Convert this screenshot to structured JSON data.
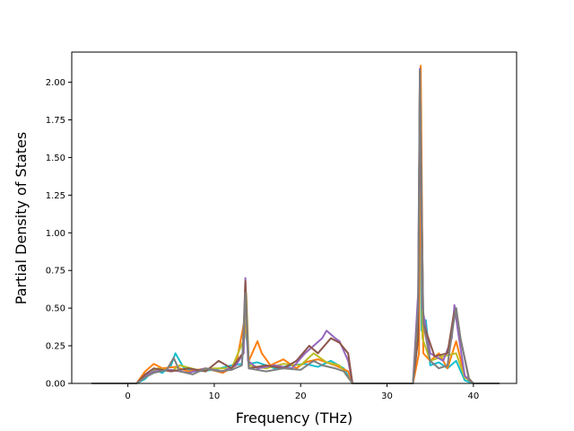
{
  "chart_data": {
    "type": "line",
    "title": "",
    "xlabel": "Frequency (THz)",
    "ylabel": "Partial Density of States",
    "xlim": [
      -6.5,
      45
    ],
    "ylim": [
      0,
      2.2
    ],
    "grid": false,
    "legend": "none",
    "x_ticks": [
      0,
      10,
      20,
      30,
      40
    ],
    "x_tick_labels": [
      "0",
      "10",
      "20",
      "30",
      "40"
    ],
    "y_ticks": [
      0,
      0.25,
      0.5,
      0.75,
      1.0,
      1.25,
      1.5,
      1.75,
      2.0
    ],
    "y_tick_labels": [
      "0.00",
      "0.25",
      "0.50",
      "0.75",
      "1.00",
      "1.25",
      "1.50",
      "1.75",
      "2.00"
    ],
    "series": [
      {
        "color": "#17becf",
        "x": [
          -4.2,
          1.0,
          2.0,
          3.0,
          4.0,
          5.0,
          5.5,
          6.5,
          8.0,
          10.0,
          12.0,
          13.2,
          13.6,
          14.0,
          15.0,
          17.0,
          19.0,
          20.5,
          22.0,
          23.5,
          25.0,
          26.0,
          33.0,
          33.6,
          33.8,
          34.0,
          34.5,
          35.0,
          36.0,
          37.0,
          38.0,
          39.0,
          40.0,
          43.0
        ],
        "y": [
          0,
          0,
          0.03,
          0.09,
          0.07,
          0.12,
          0.2,
          0.1,
          0.08,
          0.09,
          0.12,
          0.13,
          0.4,
          0.13,
          0.14,
          0.1,
          0.12,
          0.13,
          0.11,
          0.15,
          0.1,
          0.0,
          0.0,
          0.3,
          2.05,
          0.35,
          0.42,
          0.12,
          0.14,
          0.1,
          0.15,
          0.02,
          0,
          0
        ]
      },
      {
        "color": "#ff7f0e",
        "x": [
          -4.2,
          1.0,
          2.0,
          3.0,
          4.0,
          5.5,
          7.0,
          9.0,
          11.0,
          12.5,
          13.6,
          14.0,
          15.0,
          15.5,
          16.5,
          18.0,
          19.5,
          20.5,
          22.0,
          24.0,
          25.5,
          26.0,
          33.0,
          33.7,
          33.9,
          34.2,
          35.0,
          36.0,
          37.0,
          38.0,
          39.0,
          40.0,
          43.0
        ],
        "y": [
          0,
          0,
          0.08,
          0.13,
          0.1,
          0.11,
          0.08,
          0.1,
          0.07,
          0.12,
          0.45,
          0.15,
          0.28,
          0.2,
          0.12,
          0.16,
          0.1,
          0.14,
          0.16,
          0.12,
          0.08,
          0.0,
          0.0,
          0.2,
          2.11,
          0.2,
          0.15,
          0.2,
          0.1,
          0.28,
          0.05,
          0,
          0
        ]
      },
      {
        "color": "#bcbd22",
        "x": [
          -4.2,
          1.0,
          2.0,
          3.5,
          5.0,
          6.0,
          8.0,
          10.0,
          12.0,
          13.5,
          13.7,
          14.0,
          16.0,
          18.0,
          20.0,
          21.5,
          23.0,
          24.5,
          26.0,
          33.0,
          33.6,
          33.8,
          34.1,
          35.0,
          36.5,
          38.0,
          39.0,
          40.0,
          43.0
        ],
        "y": [
          0,
          0,
          0.05,
          0.1,
          0.08,
          0.12,
          0.09,
          0.1,
          0.1,
          0.3,
          0.6,
          0.12,
          0.1,
          0.13,
          0.12,
          0.2,
          0.14,
          0.12,
          0.0,
          0.0,
          0.4,
          2.08,
          0.3,
          0.15,
          0.18,
          0.2,
          0.04,
          0,
          0
        ]
      },
      {
        "color": "#9467bd",
        "x": [
          -4.2,
          1.0,
          2.0,
          3.0,
          5.0,
          7.0,
          9.0,
          11.0,
          12.5,
          13.4,
          13.6,
          13.9,
          15.0,
          17.0,
          19.0,
          20.5,
          21.5,
          22.5,
          23.0,
          24.0,
          24.5,
          25.5,
          26.0,
          33.0,
          33.6,
          33.8,
          34.1,
          35.0,
          36.5,
          37.5,
          37.8,
          38.2,
          39.0,
          40.0,
          43.0
        ],
        "y": [
          0,
          0,
          0.05,
          0.08,
          0.09,
          0.07,
          0.1,
          0.08,
          0.12,
          0.2,
          0.7,
          0.15,
          0.1,
          0.12,
          0.1,
          0.2,
          0.25,
          0.3,
          0.35,
          0.3,
          0.28,
          0.15,
          0.0,
          0.0,
          0.6,
          2.09,
          0.5,
          0.2,
          0.15,
          0.3,
          0.52,
          0.35,
          0.05,
          0,
          0
        ]
      },
      {
        "color": "#8c564b",
        "x": [
          -4.2,
          1.0,
          2.0,
          3.0,
          5.0,
          7.0,
          9.0,
          10.5,
          12.0,
          13.3,
          13.6,
          14.0,
          16.0,
          18.0,
          19.5,
          21.0,
          22.0,
          23.5,
          24.5,
          25.5,
          26.0,
          33.0,
          33.6,
          33.8,
          34.2,
          35.5,
          37.0,
          37.7,
          38.0,
          38.5,
          39.5,
          40.0,
          43.0
        ],
        "y": [
          0,
          0,
          0.06,
          0.1,
          0.08,
          0.1,
          0.08,
          0.15,
          0.1,
          0.2,
          0.68,
          0.1,
          0.12,
          0.1,
          0.15,
          0.25,
          0.2,
          0.3,
          0.27,
          0.2,
          0.0,
          0.0,
          0.3,
          2.07,
          0.4,
          0.18,
          0.2,
          0.45,
          0.5,
          0.3,
          0.03,
          0,
          0
        ]
      },
      {
        "color": "#7f7f7f",
        "x": [
          -4.2,
          1.0,
          2.0,
          3.0,
          4.5,
          5.3,
          6.0,
          7.5,
          9.0,
          10.5,
          12.0,
          13.2,
          13.6,
          14.0,
          16.0,
          18.0,
          20.0,
          21.5,
          22.5,
          24.0,
          25.0,
          26.0,
          33.0,
          33.6,
          33.8,
          34.2,
          35.0,
          36.0,
          37.0,
          37.7,
          38.0,
          38.5,
          39.5,
          40.0,
          43.0
        ],
        "y": [
          0,
          0,
          0.04,
          0.07,
          0.09,
          0.17,
          0.08,
          0.06,
          0.1,
          0.08,
          0.09,
          0.12,
          0.6,
          0.1,
          0.08,
          0.1,
          0.09,
          0.15,
          0.12,
          0.1,
          0.08,
          0.0,
          0.0,
          0.5,
          2.08,
          0.4,
          0.15,
          0.1,
          0.12,
          0.4,
          0.5,
          0.3,
          0.02,
          0,
          0
        ]
      }
    ]
  }
}
